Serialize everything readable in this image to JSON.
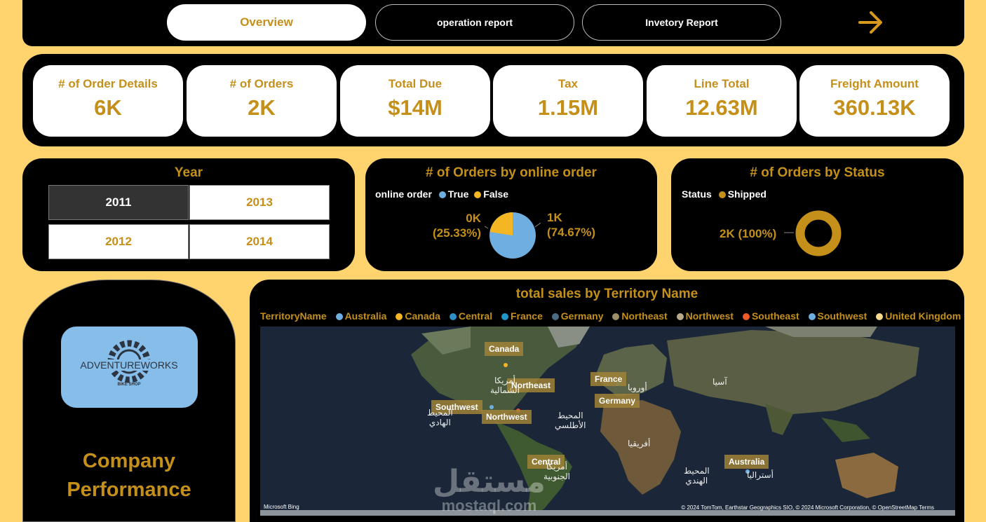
{
  "nav": {
    "tabs": [
      "Overview",
      "operation report",
      "Invetory Report"
    ],
    "active_tab": "Overview",
    "next_icon": "arrow-right-icon"
  },
  "kpis": [
    {
      "label": "# of Order Details",
      "value": "6K"
    },
    {
      "label": "# of Orders",
      "value": "2K"
    },
    {
      "label": "Total Due",
      "value": "$14M"
    },
    {
      "label": "Tax",
      "value": "1.15M"
    },
    {
      "label": "Line Total",
      "value": "12.63M"
    },
    {
      "label": "Freight Amount",
      "value": "360.13K"
    }
  ],
  "year_slicer": {
    "title": "Year",
    "options": [
      "2011",
      "2013",
      "2012",
      "2014"
    ],
    "selected": "2011"
  },
  "online_order": {
    "title": "# of Orders by online order",
    "legend_title": "online order",
    "legend": [
      {
        "name": "True",
        "color": "#6FAEE0"
      },
      {
        "name": "False",
        "color": "#F5B623"
      }
    ],
    "labels": {
      "false_value": "0K",
      "false_pct": "(25.33%)",
      "true_value": "1K",
      "true_pct": "(74.67%)"
    }
  },
  "status": {
    "title": "# of Orders by Status",
    "legend_title": "Status",
    "legend": [
      {
        "name": "Shipped",
        "color": "#C4901A"
      }
    ],
    "label": "2K (100%)"
  },
  "company": {
    "logo_text": "ADVENTUREWORKS",
    "logo_sub": "BIKE SHOP",
    "title_line1": "Company",
    "title_line2": "Performance"
  },
  "map": {
    "title": "total sales by Territory Name",
    "legend_title": "TerritoryName",
    "legend": [
      {
        "name": "Australia",
        "color": "#6FAEE0"
      },
      {
        "name": "Canada",
        "color": "#F5B623"
      },
      {
        "name": "Central",
        "color": "#2E8FC9"
      },
      {
        "name": "France",
        "color": "#1E97C9"
      },
      {
        "name": "Germany",
        "color": "#4A6C84"
      },
      {
        "name": "Northeast",
        "color": "#9C8F6A"
      },
      {
        "name": "Northwest",
        "color": "#B8A98A"
      },
      {
        "name": "Southeast",
        "color": "#F05A28"
      },
      {
        "name": "Southwest",
        "color": "#6FAEE0"
      },
      {
        "name": "United Kingdom",
        "color": "#F6D98A"
      }
    ],
    "territory_labels": [
      "Canada",
      "Northeast",
      "Southwest",
      "Northwest",
      "France",
      "Germany",
      "Central",
      "Australia"
    ],
    "place_names": {
      "north_america_1": "أمريكا",
      "north_america_2": "الشمالية",
      "pacific_1": "المحيط",
      "pacific_2": "الهادي",
      "atlantic_1": "المحيط",
      "atlantic_2": "الأطلسي",
      "europe": "أوروبا",
      "asia": "آسيا",
      "africa": "أفريقيا",
      "south_america_1": "أمريكا",
      "south_america_2": "الجنوبية",
      "indian_1": "المحيط",
      "indian_2": "الهندي",
      "australia": "أستراليا"
    },
    "credit": "© 2024 TomTom, Earthstar Geographics SIO, © 2024 Microsoft Corporation, © OpenStreetMap Terms",
    "bing": "Microsoft Bing"
  },
  "watermark": {
    "arabic": "مستقل",
    "latin": "mostaql.com"
  }
}
